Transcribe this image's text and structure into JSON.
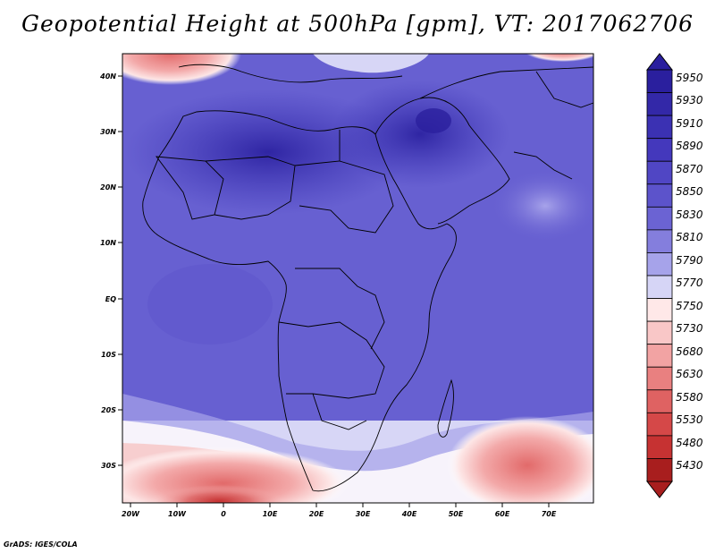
{
  "title": "Geopotential Height at 500hPa [gpm], VT: 2017062706",
  "credit": "GrADS: IGES/COLA",
  "map": {
    "region": "Africa and Middle East",
    "lat_labels": [
      "40N",
      "30N",
      "20N",
      "10N",
      "EQ",
      "10S",
      "20S",
      "30S"
    ],
    "lon_labels": [
      "20W",
      "10W",
      "0",
      "10E",
      "20E",
      "30E",
      "40E",
      "50E",
      "60E",
      "70E"
    ]
  },
  "colorbar": {
    "levels": [
      "5950",
      "5930",
      "5910",
      "5890",
      "5870",
      "5850",
      "5830",
      "5810",
      "5790",
      "5770",
      "5750",
      "5730",
      "5680",
      "5630",
      "5580",
      "5530",
      "5480",
      "5430"
    ],
    "colors": [
      "#2a1f9e",
      "#3328a8",
      "#3b31b3",
      "#4438bc",
      "#5046c4",
      "#5c53cb",
      "#6b63d3",
      "#847edd",
      "#a6a3ea",
      "#d6d5f6",
      "#ffe8e8",
      "#f9c7c7",
      "#f2a3a3",
      "#e98080",
      "#df6262",
      "#d54848",
      "#c63232",
      "#a81e1e"
    ]
  }
}
